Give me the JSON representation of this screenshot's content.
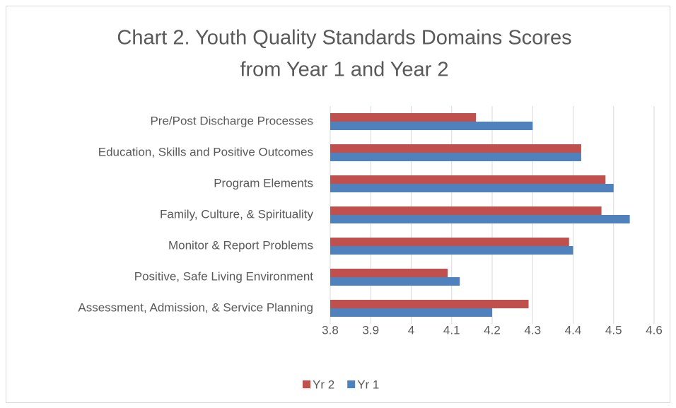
{
  "chart_data": {
    "type": "bar",
    "orientation": "horizontal",
    "title": [
      "Chart 2. Youth Quality Standards Domains Scores",
      "from Year 1 and Year 2"
    ],
    "categories": [
      "Pre/Post Discharge Processes",
      "Education, Skills and Positive Outcomes",
      "Program Elements",
      "Family, Culture, & Spirituality",
      "Monitor & Report Problems",
      "Positive, Safe Living Environment",
      "Assessment, Admission, & Service Planning"
    ],
    "series": [
      {
        "name": "Yr 2",
        "color": "#c0504d",
        "values": [
          4.16,
          4.42,
          4.48,
          4.47,
          4.39,
          4.09,
          4.29
        ]
      },
      {
        "name": "Yr 1",
        "color": "#4f81bd",
        "values": [
          4.3,
          4.42,
          4.5,
          4.54,
          4.4,
          4.12,
          4.2
        ]
      }
    ],
    "xlim": [
      3.8,
      4.6
    ],
    "xticks": [
      3.8,
      3.9,
      4,
      4.1,
      4.2,
      4.3,
      4.4,
      4.5,
      4.6
    ],
    "grid": true,
    "legend": "bottom"
  }
}
